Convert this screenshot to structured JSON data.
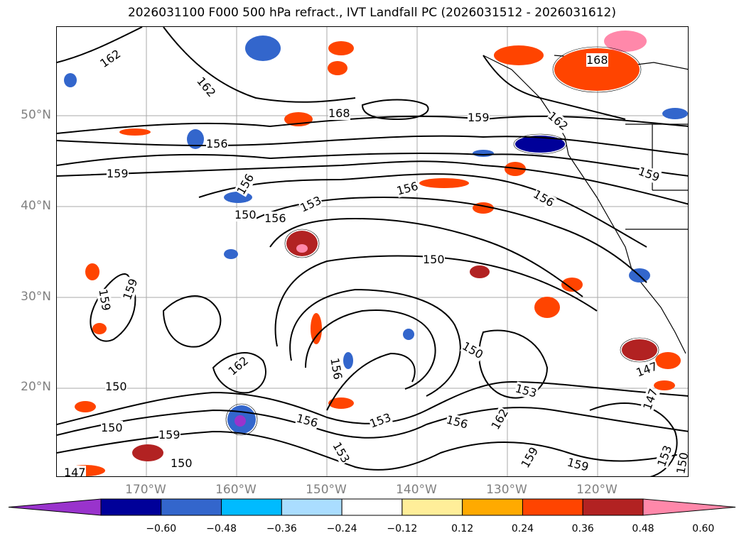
{
  "title": "2026031100 F000 500 hPa refract., IVT Landfall PC (2026031512 - 2026031612)",
  "lat_labels": [
    "50°N",
    "40°N",
    "30°N",
    "20°N"
  ],
  "lon_labels": [
    "170°W",
    "160°W",
    "150°W",
    "140°W",
    "130°W",
    "120°W"
  ],
  "contour_labels": [
    "162",
    "162",
    "168",
    "168",
    "159",
    "156",
    "159",
    "156",
    "156",
    "156",
    "153",
    "156",
    "159",
    "150",
    "159",
    "159",
    "150",
    "156",
    "150",
    "150",
    "153",
    "156",
    "153",
    "153",
    "156",
    "162",
    "150",
    "147",
    "147",
    "159",
    "159",
    "153",
    "150",
    "162",
    "147",
    "159",
    "162",
    "150"
  ],
  "colorbar": {
    "colors": [
      "#9933cc",
      "#000099",
      "#3366cc",
      "#00bbff",
      "#aaddff",
      "#ffffff",
      "#ffee99",
      "#ffaa00",
      "#ff4400",
      "#b22222",
      "#ff88aa"
    ],
    "ticks": [
      "−0.60",
      "−0.48",
      "−0.36",
      "−0.24",
      "−0.12",
      "0.12",
      "0.24",
      "0.36",
      "0.48",
      "0.60"
    ]
  },
  "palette": {
    "grid": "#aaaaaa",
    "axis_label": "#808080",
    "contour": "#000000"
  }
}
